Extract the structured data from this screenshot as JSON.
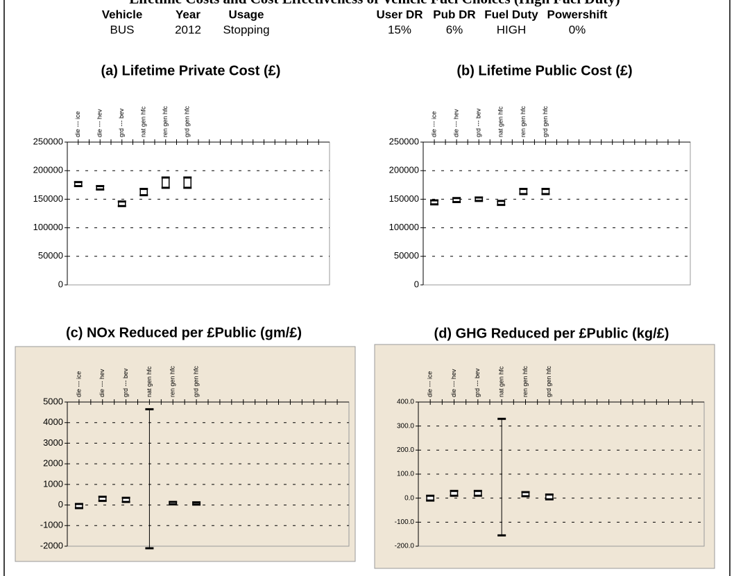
{
  "header": {
    "title": "Lifetime Costs and Cost Effectiveness of Vehicle Fuel Choices (High Fuel Duty)",
    "columns": [
      "Vehicle",
      "Year",
      "Usage",
      "User DR",
      "Pub DR",
      "Fuel Duty",
      "Powershift"
    ],
    "values": [
      "BUS",
      "2012",
      "Stopping",
      "15%",
      "6%",
      "HIGH",
      "0%"
    ]
  },
  "chart_data": [
    {
      "type": "range",
      "title": "(a) Lifetime Private Cost (£)",
      "categories": [
        "die --- ice",
        "die --- hev",
        "grd --- bev",
        "nat gen hfc",
        "ren gen hfc",
        "grd gen hfc"
      ],
      "low": [
        173000,
        167000,
        138000,
        157000,
        170000,
        170000
      ],
      "high": [
        180000,
        173000,
        146000,
        168000,
        188000,
        188000
      ],
      "ylim": [
        0,
        250000
      ],
      "yticks": [
        0,
        50000,
        100000,
        150000,
        200000,
        250000
      ],
      "grid": true,
      "background": "#ffffff"
    },
    {
      "type": "range",
      "title": "(b) Lifetime Public Cost (£)",
      "categories": [
        "die --- ice",
        "die --- hev",
        "grd --- bev",
        "nat gen hfc",
        "ren gen hfc",
        "grd gen hfc"
      ],
      "low": [
        141000,
        145000,
        147000,
        140000,
        159000,
        159000
      ],
      "high": [
        148000,
        152000,
        153000,
        147000,
        168000,
        168000
      ],
      "ylim": [
        0,
        250000
      ],
      "yticks": [
        0,
        50000,
        100000,
        150000,
        200000,
        250000
      ],
      "grid": true,
      "background": "#ffffff"
    },
    {
      "type": "range",
      "title": "(c) NOx Reduced per £Public (gm/£)",
      "categories": [
        "die --- ice",
        "die --- hev",
        "grd --- bev",
        "nat gen hfc",
        "ren gen hfc",
        "grd gen hfc"
      ],
      "low": [
        -150,
        200,
        150,
        -2100,
        30,
        20
      ],
      "high": [
        50,
        400,
        350,
        4650,
        150,
        130
      ],
      "ylim": [
        -2000,
        5000
      ],
      "yticks": [
        -2000,
        -1000,
        0,
        1000,
        2000,
        3000,
        4000,
        5000
      ],
      "grid": true,
      "background": "#efe6d6"
    },
    {
      "type": "range",
      "title": "(d) GHG Reduced per £Public (kg/£)",
      "categories": [
        "die --- ice",
        "die --- hev",
        "grd --- bev",
        "nat gen hfc",
        "ren gen hfc",
        "grd gen hfc"
      ],
      "low": [
        -10,
        10,
        10,
        -155,
        8,
        -5
      ],
      "high": [
        10,
        30,
        30,
        330,
        25,
        15
      ],
      "ylim": [
        -200,
        400
      ],
      "yticks": [
        {
          "value": -200,
          "label": "-200.0"
        },
        {
          "value": -100,
          "label": "-100.0"
        },
        {
          "value": 0,
          "label": "0.0"
        },
        {
          "value": 100,
          "label": "100.0"
        },
        {
          "value": 200,
          "label": "200.0"
        },
        {
          "value": 300,
          "label": "300.0"
        },
        {
          "value": 400,
          "label": "400.0"
        }
      ],
      "grid": true,
      "background": "#efe6d6"
    }
  ]
}
